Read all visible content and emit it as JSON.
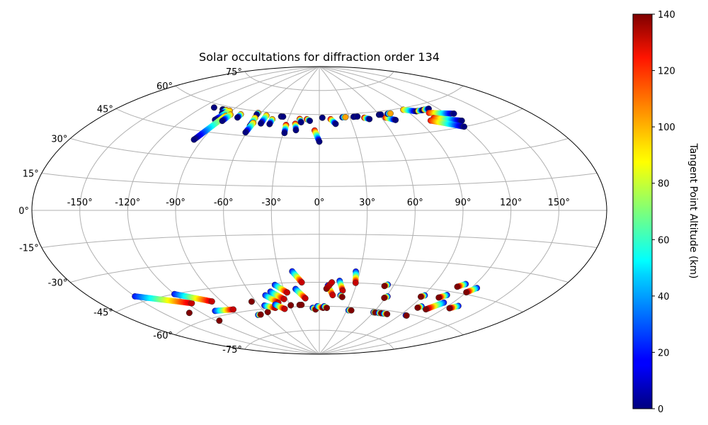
{
  "chart_data": {
    "type": "scatter",
    "projection": "aitoff",
    "title": "Solar occultations for diffraction order 134",
    "xlabel": "",
    "ylabel": "",
    "grid": true,
    "longitude_ticks": [
      "-150°",
      "-120°",
      "-90°",
      "-60°",
      "-30°",
      "0°",
      "30°",
      "60°",
      "90°",
      "120°",
      "150°"
    ],
    "latitude_ticks": [
      {
        "lat": 75,
        "label": "75°"
      },
      {
        "lat": 60,
        "label": "60°"
      },
      {
        "lat": 45,
        "label": "45°"
      },
      {
        "lat": 30,
        "label": "30°"
      },
      {
        "lat": 15,
        "label": "15°"
      },
      {
        "lat": 0,
        "label": "0°"
      },
      {
        "lat": -15,
        "label": "-15°"
      },
      {
        "lat": -30,
        "label": "-30°"
      },
      {
        "lat": -45,
        "label": "-45°"
      },
      {
        "lat": -60,
        "label": "-60°"
      },
      {
        "lat": -75,
        "label": "-75°"
      }
    ],
    "colorbar": {
      "label": "Tangent Point Altitude (km)",
      "range": [
        0,
        140
      ],
      "ticks": [
        "0",
        "20",
        "40",
        "60",
        "80",
        "100",
        "120",
        "140"
      ],
      "colormap": "jet"
    },
    "occultations": [
      {
        "lon": -110,
        "lat": 58,
        "lon_end": -110,
        "lat_end": 58,
        "alt_start": 0,
        "alt_end": 0
      },
      {
        "lon": -100,
        "lat": 58,
        "lon_end": -99,
        "lat_end": 58,
        "alt_start": 0,
        "alt_end": 0
      },
      {
        "lon": -96,
        "lat": 58,
        "lon_end": -96,
        "lat_end": 56,
        "alt_start": 100,
        "alt_end": 0
      },
      {
        "lon": -92,
        "lat": 58,
        "lon_end": -95,
        "lat_end": 52,
        "alt_start": 100,
        "alt_end": 0
      },
      {
        "lon": -90,
        "lat": 55,
        "lon_end": -96,
        "lat_end": 40,
        "alt_start": 100,
        "alt_end": 0
      },
      {
        "lon": -87,
        "lat": 56,
        "lon_end": -88,
        "lat_end": 52,
        "alt_start": 100,
        "alt_end": 0
      },
      {
        "lon": -78,
        "lat": 57,
        "lon_end": -78,
        "lat_end": 55,
        "alt_start": 100,
        "alt_end": 0
      },
      {
        "lon": -63,
        "lat": 59,
        "lon_end": -63,
        "lat_end": 58,
        "alt_start": 100,
        "alt_end": 0
      },
      {
        "lon": -62,
        "lat": 56,
        "lon_end": -61,
        "lat_end": 51,
        "alt_start": 100,
        "alt_end": 0
      },
      {
        "lon": -60,
        "lat": 53,
        "lon_end": -61,
        "lat_end": 47,
        "alt_start": 100,
        "alt_end": 0
      },
      {
        "lon": -53,
        "lat": 58,
        "lon_end": -53,
        "lat_end": 53,
        "alt_start": 100,
        "alt_end": 0
      },
      {
        "lon": -45,
        "lat": 56,
        "lon_end": -45,
        "lat_end": 53,
        "alt_start": 100,
        "alt_end": 0
      },
      {
        "lon": -38,
        "lat": 58,
        "lon_end": -36,
        "lat_end": 58,
        "alt_start": 0,
        "alt_end": 0
      },
      {
        "lon": -30,
        "lat": 53,
        "lon_end": -29,
        "lat_end": 48,
        "alt_start": 120,
        "alt_end": 0
      },
      {
        "lon": -22,
        "lat": 54,
        "lon_end": -20,
        "lat_end": 50,
        "alt_start": 120,
        "alt_end": 0
      },
      {
        "lon": -19,
        "lat": 57,
        "lon_end": -17,
        "lat_end": 55,
        "alt_start": 120,
        "alt_end": 0
      },
      {
        "lon": -12,
        "lat": 57,
        "lon_end": -9,
        "lat_end": 56,
        "alt_start": 120,
        "alt_end": 0
      },
      {
        "lon": -4,
        "lat": 50,
        "lon_end": 0,
        "lat_end": 43,
        "alt_start": 120,
        "alt_end": 0
      },
      {
        "lon": 3,
        "lat": 58,
        "lon_end": 3,
        "lat_end": 58,
        "alt_start": 0,
        "alt_end": 0
      },
      {
        "lon": 11,
        "lat": 57,
        "lon_end": 15,
        "lat_end": 54,
        "alt_start": 120,
        "alt_end": 0
      },
      {
        "lon": 23,
        "lat": 58,
        "lon_end": 26,
        "lat_end": 58,
        "alt_start": 0,
        "alt_end": 100
      },
      {
        "lon": 34,
        "lat": 58,
        "lon_end": 38,
        "lat_end": 58,
        "alt_start": 0,
        "alt_end": 0
      },
      {
        "lon": 44,
        "lat": 57,
        "lon_end": 48,
        "lat_end": 56,
        "alt_start": 120,
        "alt_end": 0
      },
      {
        "lon": 60,
        "lat": 58,
        "lon_end": 62,
        "lat_end": 58,
        "alt_start": 0,
        "alt_end": 0
      },
      {
        "lon": 64,
        "lat": 56,
        "lon_end": 71,
        "lat_end": 54,
        "alt_start": 120,
        "alt_end": 0
      },
      {
        "lon": 69,
        "lat": 58,
        "lon_end": 72,
        "lat_end": 58,
        "alt_start": 0,
        "alt_end": 100
      },
      {
        "lon": 88,
        "lat": 59,
        "lon_end": 98,
        "lat_end": 57,
        "alt_start": 100,
        "alt_end": 0
      },
      {
        "lon": 100,
        "lat": 57,
        "lon_end": 105,
        "lat_end": 57,
        "alt_start": 100,
        "alt_end": 0
      },
      {
        "lon": 107,
        "lat": 57,
        "lon_end": 112,
        "lat_end": 57,
        "alt_start": 100,
        "alt_end": 0
      },
      {
        "lon": 107,
        "lat": 55,
        "lon_end": 126,
        "lat_end": 52,
        "alt_start": 120,
        "alt_end": 0
      },
      {
        "lon": 105,
        "lat": 52,
        "lon_end": 124,
        "lat_end": 48,
        "alt_start": 120,
        "alt_end": 0
      },
      {
        "lon": 100,
        "lat": 51,
        "lon_end": 120,
        "lat_end": 45,
        "alt_start": 120,
        "alt_end": 0
      },
      {
        "lon": -150,
        "lat": -42,
        "lon_end": -116,
        "lat_end": -51,
        "alt_start": 20,
        "alt_end": 130
      },
      {
        "lon": -120,
        "lat": -45,
        "lon_end": -98,
        "lat_end": -52,
        "alt_start": 20,
        "alt_end": 130
      },
      {
        "lon": -106,
        "lat": -57,
        "lon_end": -88,
        "lat_end": -58,
        "alt_start": 20,
        "alt_end": 130
      },
      {
        "lon": -130,
        "lat": -55,
        "lon_end": -130,
        "lat_end": -55,
        "alt_start": 140,
        "alt_end": 140
      },
      {
        "lon": -117,
        "lat": -62,
        "lon_end": -117,
        "lat_end": -62,
        "alt_start": 140,
        "alt_end": 140
      },
      {
        "lon": -70,
        "lat": -63,
        "lon_end": -67,
        "lat_end": -63,
        "alt_start": 20,
        "alt_end": 140
      },
      {
        "lon": -64,
        "lat": -55,
        "lon_end": -64,
        "lat_end": -55,
        "alt_start": 140,
        "alt_end": 140
      },
      {
        "lon": -57,
        "lat": -62,
        "lon_end": -57,
        "lat_end": -62,
        "alt_start": 140,
        "alt_end": 140
      },
      {
        "lon": -55,
        "lat": -58,
        "lon_end": -46,
        "lat_end": -60,
        "alt_start": 20,
        "alt_end": 130
      },
      {
        "lon": -48,
        "lat": -52,
        "lon_end": -40,
        "lat_end": -57,
        "alt_start": 20,
        "alt_end": 130
      },
      {
        "lon": -44,
        "lat": -58,
        "lon_end": -37,
        "lat_end": -61,
        "alt_start": 20,
        "alt_end": 130
      },
      {
        "lon": -42,
        "lat": -50,
        "lon_end": -33,
        "lat_end": -55,
        "alt_start": 20,
        "alt_end": 130
      },
      {
        "lon": -36,
        "lat": -46,
        "lon_end": -28,
        "lat_end": -51,
        "alt_start": 20,
        "alt_end": 130
      },
      {
        "lon": -29,
        "lat": -59,
        "lon_end": -29,
        "lat_end": -59,
        "alt_start": 140,
        "alt_end": 140
      },
      {
        "lon": -20,
        "lat": -38,
        "lon_end": -14,
        "lat_end": -45,
        "alt_start": 20,
        "alt_end": 130
      },
      {
        "lon": -20,
        "lat": -49,
        "lon_end": -13,
        "lat_end": -55,
        "alt_start": 20,
        "alt_end": 130
      },
      {
        "lon": -20,
        "lat": -59,
        "lon_end": -18,
        "lat_end": -59,
        "alt_start": 140,
        "alt_end": 140
      },
      {
        "lon": -7,
        "lat": -61,
        "lon_end": -4,
        "lat_end": -62,
        "alt_start": 20,
        "alt_end": 140
      },
      {
        "lon": -2,
        "lat": -60,
        "lon_end": 4,
        "lat_end": -61,
        "alt_start": 20,
        "alt_end": 140
      },
      {
        "lon": 5,
        "lat": -60,
        "lon_end": 8,
        "lat_end": -61,
        "alt_start": 20,
        "alt_end": 140
      },
      {
        "lon": 7,
        "lat": -47,
        "lon_end": 12,
        "lat_end": -53,
        "alt_start": 20,
        "alt_end": 130
      },
      {
        "lon": 6,
        "lat": -49,
        "lon_end": 10,
        "lat_end": -45,
        "alt_start": 140,
        "alt_end": 130
      },
      {
        "lon": 16,
        "lat": -44,
        "lon_end": 20,
        "lat_end": -50,
        "alt_start": 20,
        "alt_end": 130
      },
      {
        "lon": 19,
        "lat": -53,
        "lon_end": 21,
        "lat_end": -54,
        "alt_start": 20,
        "alt_end": 140
      },
      {
        "lon": 27,
        "lat": -38,
        "lon_end": 29,
        "lat_end": -45,
        "alt_start": 20,
        "alt_end": 130
      },
      {
        "lon": 32,
        "lat": -62,
        "lon_end": 35,
        "lat_end": -62,
        "alt_start": 20,
        "alt_end": 140
      },
      {
        "lon": 55,
        "lat": -45,
        "lon_end": 53,
        "lat_end": -46,
        "alt_start": 20,
        "alt_end": 140
      },
      {
        "lon": 61,
        "lat": -52,
        "lon_end": 59,
        "lat_end": -53,
        "alt_start": 20,
        "alt_end": 140
      },
      {
        "lon": 60,
        "lat": -62,
        "lon_end": 62,
        "lat_end": -62,
        "alt_start": 20,
        "alt_end": 140
      },
      {
        "lon": 66,
        "lat": -62,
        "lon_end": 69,
        "lat_end": -62,
        "alt_start": 20,
        "alt_end": 140
      },
      {
        "lon": 72,
        "lat": -62,
        "lon_end": 76,
        "lat_end": -62,
        "alt_start": 20,
        "alt_end": 140
      },
      {
        "lon": 91,
        "lat": -49,
        "lon_end": 89,
        "lat_end": -50,
        "alt_start": 20,
        "alt_end": 140
      },
      {
        "lon": 99,
        "lat": -55,
        "lon_end": 97,
        "lat_end": -56,
        "alt_start": 20,
        "alt_end": 140
      },
      {
        "lon": 96,
        "lat": -61,
        "lon_end": 97,
        "lat_end": -61,
        "alt_start": 20,
        "alt_end": 140
      },
      {
        "lon": 108,
        "lat": -47,
        "lon_end": 104,
        "lat_end": -49,
        "alt_start": 20,
        "alt_end": 140
      },
      {
        "lon": 113,
        "lat": -40,
        "lon_end": 109,
        "lat_end": -42,
        "alt_start": 20,
        "alt_end": 140
      },
      {
        "lon": 124,
        "lat": -41,
        "lon_end": 120,
        "lat_end": -44,
        "alt_start": 20,
        "alt_end": 140
      },
      {
        "lon": 113,
        "lat": -51,
        "lon_end": 106,
        "lat_end": -56,
        "alt_start": 20,
        "alt_end": 140
      },
      {
        "lon": 128,
        "lat": -51,
        "lon_end": 124,
        "lat_end": -53,
        "alt_start": 20,
        "alt_end": 140
      }
    ]
  }
}
